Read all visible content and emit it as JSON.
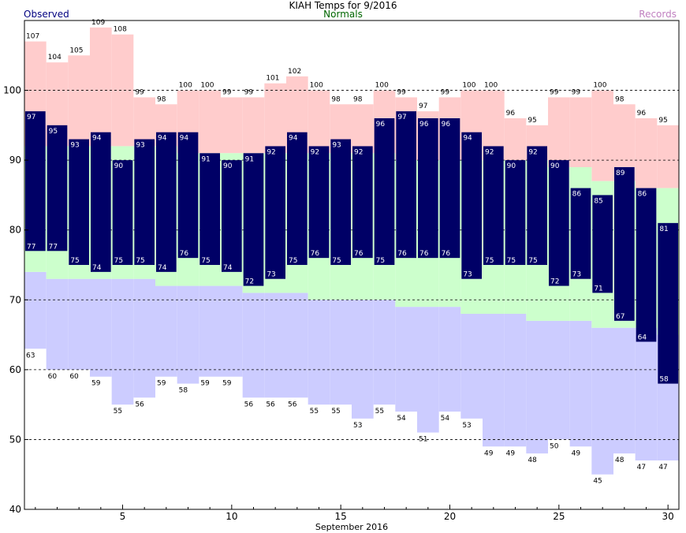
{
  "title": "KIAH Temps for 9/2016",
  "legend": {
    "observed": "Observed",
    "normals": "Normals",
    "records": "Records"
  },
  "colors": {
    "observed": "#000066",
    "normals": "#ccffcc",
    "record_high": "#ffcccc",
    "record_low": "#ccccff",
    "observed_label": "#000080",
    "normals_label": "#006600",
    "records_label": "#c080c0"
  },
  "chart_data": {
    "type": "bar",
    "xlabel": "September 2016",
    "ylabel": "",
    "ylim": [
      40,
      110
    ],
    "xlim": [
      0.5,
      30.5
    ],
    "yticks": [
      40,
      50,
      60,
      70,
      80,
      90,
      100
    ],
    "xticks": [
      5,
      10,
      15,
      20,
      25,
      30
    ],
    "grid": "dashed at 50, 60, 70, 80, 90, 100",
    "days": [
      1,
      2,
      3,
      4,
      5,
      6,
      7,
      8,
      9,
      10,
      11,
      12,
      13,
      14,
      15,
      16,
      17,
      18,
      19,
      20,
      21,
      22,
      23,
      24,
      25,
      26,
      27,
      28,
      29,
      30
    ],
    "series": [
      {
        "name": "Observed high",
        "values": [
          97,
          95,
          93,
          94,
          90,
          93,
          94,
          94,
          91,
          90,
          91,
          92,
          94,
          92,
          93,
          92,
          96,
          97,
          96,
          96,
          94,
          92,
          90,
          92,
          90,
          86,
          85,
          89,
          86,
          81
        ]
      },
      {
        "name": "Observed low",
        "values": [
          77,
          77,
          75,
          74,
          75,
          75,
          74,
          76,
          75,
          74,
          72,
          73,
          75,
          76,
          75,
          76,
          75,
          76,
          76,
          76,
          73,
          75,
          75,
          75,
          72,
          73,
          71,
          67,
          64,
          58
        ]
      },
      {
        "name": "Normal high",
        "values": [
          92,
          92,
          92,
          92,
          92,
          92,
          92,
          91,
          91,
          91,
          91,
          91,
          91,
          91,
          91,
          91,
          91,
          90,
          90,
          90,
          90,
          90,
          90,
          90,
          89,
          89,
          87,
          87,
          86,
          86
        ]
      },
      {
        "name": "Normal low",
        "values": [
          74,
          73,
          73,
          73,
          73,
          73,
          72,
          72,
          72,
          72,
          71,
          71,
          71,
          70,
          70,
          70,
          70,
          69,
          69,
          69,
          68,
          68,
          68,
          67,
          67,
          67,
          66,
          66,
          66,
          65
        ]
      },
      {
        "name": "Record high",
        "values": [
          107,
          104,
          105,
          109,
          108,
          99,
          98,
          100,
          100,
          99,
          99,
          101,
          102,
          100,
          98,
          98,
          100,
          99,
          97,
          99,
          100,
          100,
          96,
          95,
          99,
          99,
          100,
          98,
          96,
          95
        ]
      },
      {
        "name": "Record low",
        "values": [
          63,
          60,
          60,
          59,
          55,
          56,
          59,
          58,
          59,
          59,
          56,
          56,
          56,
          55,
          55,
          53,
          55,
          54,
          51,
          54,
          53,
          49,
          49,
          48,
          50,
          49,
          45,
          48,
          47,
          47
        ]
      }
    ]
  }
}
